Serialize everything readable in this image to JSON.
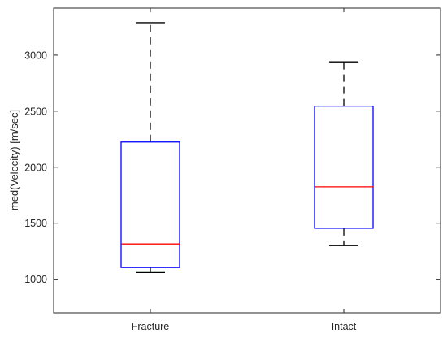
{
  "chart_data": {
    "type": "boxplot",
    "title": "",
    "xlabel": "",
    "ylabel": "med(Velocity) [m/sec]",
    "categories": [
      "Fracture",
      "Intact"
    ],
    "boxes": [
      {
        "category": "Fracture",
        "whisker_low": 1060,
        "q1": 1105,
        "median": 1315,
        "q3": 2225,
        "whisker_high": 3290
      },
      {
        "category": "Intact",
        "whisker_low": 1300,
        "q1": 1455,
        "median": 1825,
        "q3": 2545,
        "whisker_high": 2940
      }
    ],
    "ylim": [
      700,
      3420
    ],
    "yticks": [
      1000,
      1500,
      2000,
      2500,
      3000
    ],
    "grid": false,
    "colors": {
      "box": "#0000ff",
      "median": "#ff0000",
      "whisker": "#000000",
      "axis": "#262626"
    }
  }
}
